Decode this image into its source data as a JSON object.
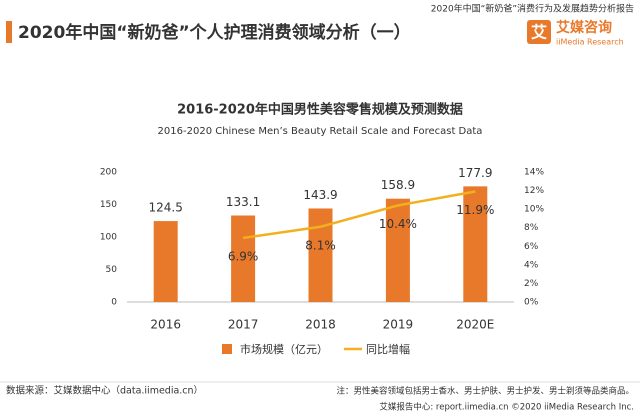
{
  "header": {
    "title": "2020年中国“新奶爸”个人护理消费领域分析（一）",
    "report": "2020年中国“新奶爸”消费行为及发展趋势分析报告",
    "logo_icon": "艾",
    "logo_name": "艾媒咨询",
    "logo_sub": "iiMedia Research"
  },
  "chart_data": {
    "type": "bar",
    "title": "2016-2020年中国男性美容零售规模及预测数据",
    "subtitle": "2016-2020 Chinese Men’s Beauty Retail Scale and Forecast Data",
    "categories": [
      "2016",
      "2017",
      "2018",
      "2019",
      "2020E"
    ],
    "series": [
      {
        "name": "市场规模（亿元）",
        "type": "bar",
        "color": "#e8792b",
        "values": [
          124.5,
          133.1,
          143.9,
          158.9,
          177.9
        ]
      },
      {
        "name": "同比增幅",
        "type": "line",
        "axis": "y2",
        "color": "#f2b01e",
        "values": [
          null,
          6.9,
          8.1,
          10.4,
          11.9
        ],
        "value_labels": [
          null,
          "6.9%",
          "8.1%",
          "10.4%",
          "11.9%"
        ]
      }
    ],
    "ylim": [
      0,
      200
    ],
    "yticks": [
      0,
      50,
      100,
      150,
      200
    ],
    "y2lim": [
      0,
      14
    ],
    "y2ticks": [
      {
        "value": 0,
        "label": "0%"
      },
      {
        "value": 2,
        "label": "2%"
      },
      {
        "value": 4,
        "label": "4%"
      },
      {
        "value": 6,
        "label": "6%"
      },
      {
        "value": 8,
        "label": "8%"
      },
      {
        "value": 10,
        "label": "10%"
      },
      {
        "value": 12,
        "label": "12%"
      },
      {
        "value": 14,
        "label": "14%"
      }
    ],
    "grid": false
  },
  "footer": {
    "source": "数据来源：艾媒数据中心（data.iimedia.cn）",
    "note": "注：男性美容领域包括男士香水、男士护肤、男士护发、男士剃须等品类商品。",
    "copyright": "艾媒报告中心: report.iimedia.cn ©2020 iiMedia Research Inc."
  }
}
